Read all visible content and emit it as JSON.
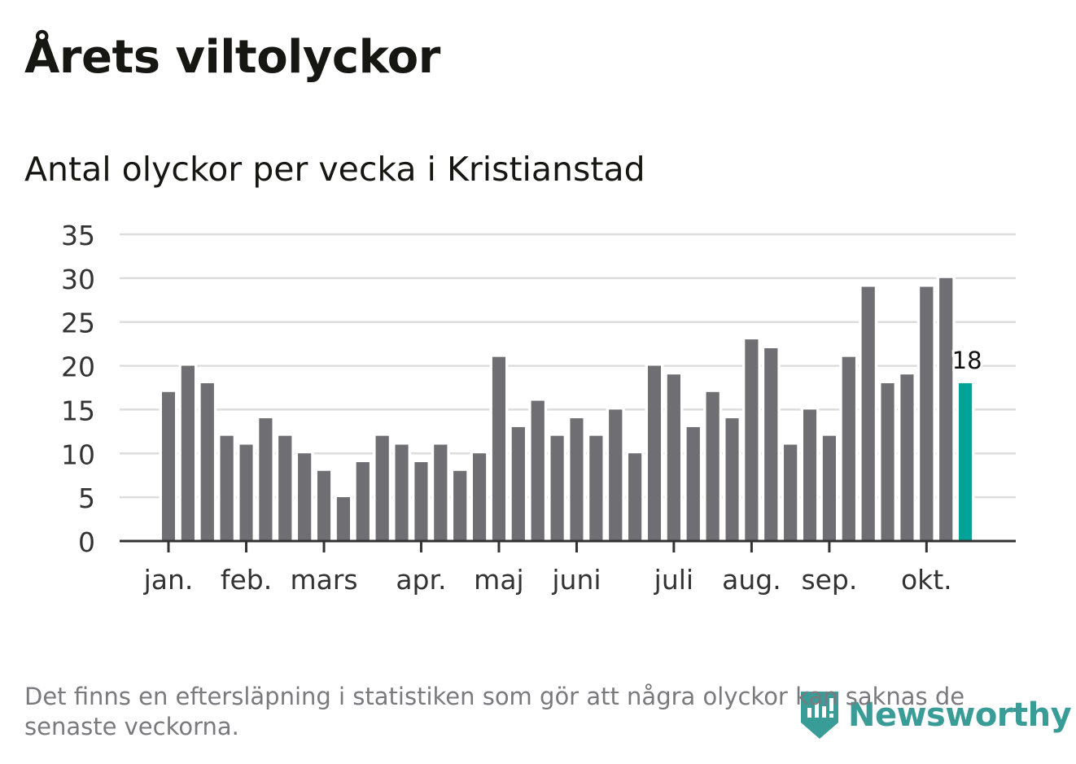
{
  "chart_data": {
    "type": "bar",
    "title": "Årets viltolyckor",
    "subtitle": "Antal olyckor per vecka i Kristianstad",
    "xlabel": "",
    "ylabel": "",
    "ylim": [
      0,
      35
    ],
    "yticks": [
      0,
      5,
      10,
      15,
      20,
      25,
      30,
      35
    ],
    "grid": true,
    "month_labels": [
      {
        "label": "jan.",
        "week_index": 0
      },
      {
        "label": "feb.",
        "week_index": 4
      },
      {
        "label": "mars",
        "week_index": 8
      },
      {
        "label": "apr.",
        "week_index": 13
      },
      {
        "label": "maj",
        "week_index": 17
      },
      {
        "label": "juni",
        "week_index": 21
      },
      {
        "label": "juli",
        "week_index": 26
      },
      {
        "label": "aug.",
        "week_index": 30
      },
      {
        "label": "sep.",
        "week_index": 34
      },
      {
        "label": "okt.",
        "week_index": 39
      }
    ],
    "values": [
      17,
      20,
      18,
      12,
      11,
      14,
      12,
      10,
      8,
      5,
      9,
      12,
      11,
      9,
      11,
      8,
      10,
      21,
      13,
      16,
      12,
      14,
      12,
      15,
      10,
      20,
      19,
      13,
      17,
      14,
      23,
      22,
      11,
      15,
      12,
      21,
      29,
      18,
      19,
      29,
      30,
      18
    ],
    "highlight_index": 41,
    "highlight_label": "18",
    "colors": {
      "bar": "#6f6e73",
      "highlight": "#00a398",
      "grid": "#dddddd",
      "axis": "#333333"
    }
  },
  "footnote": "Det finns en eftersläpning i statistiken som gör att några olyckor kan saknas de senaste veckorna.",
  "logo": {
    "text": "Newsworthy",
    "color": "#3a9c97"
  }
}
